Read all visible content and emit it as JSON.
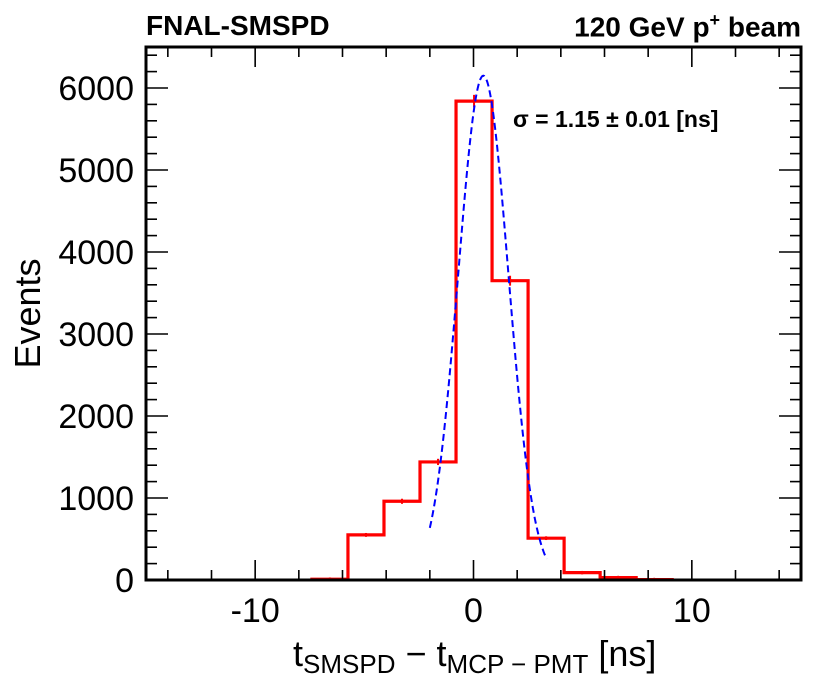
{
  "header": {
    "left": "FNAL-SMSPD",
    "right_prefix": "120 GeV p",
    "right_sup": "+",
    "right_suffix": " beam"
  },
  "chart_data": {
    "type": "bar",
    "title": "",
    "xlabel": "t_SMSPD − t_MCP−PMT [ns]",
    "xlabel_parts": {
      "t": "t",
      "sub1": "SMSPD",
      "minus": " − ",
      "sub2": "MCP − PMT",
      "unit": " [ns]"
    },
    "ylabel": "Events",
    "xlim": [
      -15,
      15
    ],
    "ylim": [
      0,
      6500
    ],
    "xticks": [
      -10,
      0,
      10
    ],
    "xtick_labels": [
      "-10",
      "0",
      "10"
    ],
    "yticks": [
      0,
      1000,
      2000,
      3000,
      4000,
      5000,
      6000
    ],
    "ytick_labels": [
      "0",
      "1000",
      "2000",
      "3000",
      "4000",
      "5000",
      "6000"
    ],
    "series": [
      {
        "name": "histogram",
        "style": "step",
        "color": "#ff0000",
        "bin_edges": [
          -7.4,
          -5.75,
          -4.1,
          -2.45,
          -0.8,
          0.85,
          2.5,
          4.15,
          5.8,
          7.45,
          9.1
        ],
        "values": [
          10,
          550,
          960,
          1440,
          5840,
          3650,
          510,
          90,
          30,
          5
        ]
      },
      {
        "name": "gaussian fit",
        "style": "dashed",
        "color": "#0000ff",
        "mean": 0.45,
        "sigma": 1.15,
        "amplitude": 6150,
        "range": [
          -2.0,
          3.35
        ]
      }
    ],
    "annotations": [
      {
        "text": "σ = 1.15 ± 0.01 [ns]",
        "position": "top-right"
      }
    ],
    "grid": false
  }
}
